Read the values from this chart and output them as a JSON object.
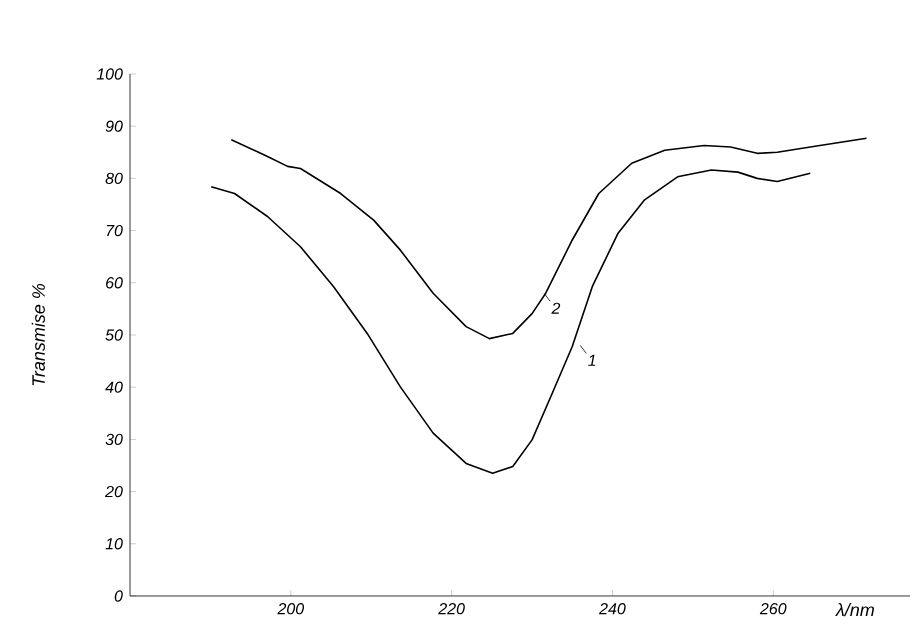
{
  "chart_data": {
    "type": "line",
    "xlabel": "λ/nm",
    "ylabel": "Transmise %",
    "xlim": [
      180,
      277
    ],
    "ylim": [
      0,
      100
    ],
    "xticks": [
      200,
      220,
      240,
      260
    ],
    "yticks": [
      0,
      10,
      20,
      30,
      40,
      50,
      60,
      70,
      80,
      90,
      100
    ],
    "series": [
      {
        "color": "#000000",
        "x": [
          190.1,
          193.0,
          197.1,
          201.2,
          205.3,
          209.5,
          213.6,
          217.7,
          221.8,
          225.1,
          227.6,
          230.0,
          232.5,
          235.0,
          237.5,
          240.7,
          244.0,
          248.1,
          252.3,
          255.6,
          258.0,
          260.5,
          264.6
        ],
        "values": [
          78.4,
          77.1,
          72.7,
          66.9,
          59.3,
          50.3,
          40.1,
          31.2,
          25.4,
          23.5,
          24.8,
          29.9,
          38.8,
          47.8,
          59.3,
          69.5,
          75.9,
          80.3,
          81.6,
          81.2,
          80.0,
          79.4,
          81.0
        ]
      },
      {
        "color": "#000000",
        "x": [
          192.6,
          197.1,
          199.6,
          201.2,
          206.2,
          210.3,
          213.6,
          217.7,
          221.8,
          224.7,
          227.6,
          230.0,
          231.7,
          235.0,
          238.3,
          242.4,
          246.5,
          251.4,
          254.7,
          258.0,
          260.5,
          264.6,
          271.6
        ],
        "values": [
          87.4,
          84.2,
          82.3,
          81.9,
          77.1,
          72.0,
          66.3,
          58.0,
          51.6,
          49.3,
          50.3,
          54.1,
          58.0,
          68.2,
          77.1,
          82.9,
          85.4,
          86.3,
          86.0,
          84.8,
          85.0,
          86.0,
          87.7
        ]
      }
    ],
    "annotations": [
      {
        "text": "1",
        "x": 236.0,
        "y": 48
      },
      {
        "text": "2",
        "x": 231.5,
        "y": 58
      }
    ]
  }
}
